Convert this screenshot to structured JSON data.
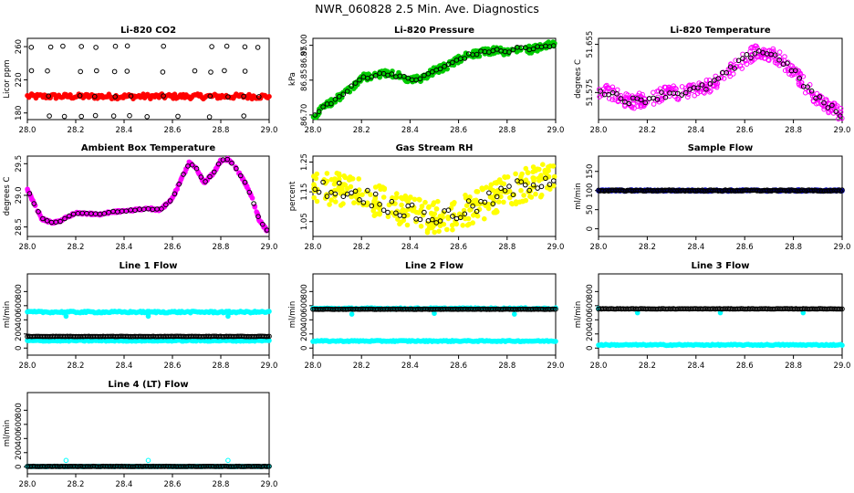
{
  "figure": {
    "title": "NWR_060828  2.5 Min. Ave. Diagnostics"
  },
  "colors": {
    "black": "#000000",
    "red": "#ff0000",
    "green": "#00cc00",
    "magenta": "#ff00ff",
    "yellow": "#ffff00",
    "blue": "#0000cc",
    "cyan": "#00ffff"
  },
  "chart_data": [
    {
      "type": "scatter",
      "title": "Li-820 CO2",
      "ylabel": "Licor ppm",
      "xlim": [
        28.0,
        29.0
      ],
      "ylim": [
        172,
        270
      ],
      "xticks": [
        28.0,
        28.2,
        28.4,
        28.6,
        28.8,
        29.0
      ],
      "xtick_labels": [
        "28.0",
        "28.2",
        "28.4",
        "28.6",
        "28.8",
        "29.0"
      ],
      "yticks": [
        180,
        220,
        260
      ],
      "ytick_labels": [
        "180",
        "220",
        "260"
      ],
      "series": [
        {
          "color": "red",
          "filled": true,
          "style": "band",
          "base": 200,
          "jitter": 3
        },
        {
          "color": "black",
          "filled": false,
          "style": "rows",
          "x_start": 28.02,
          "x_step": 0.067,
          "levels": [
            260,
            230,
            200,
            176
          ]
        }
      ]
    },
    {
      "type": "scatter",
      "title": "Li-820 Pressure",
      "ylabel": "kPa",
      "xlim": [
        28.0,
        29.0
      ],
      "ylim": [
        86.68,
        87.03
      ],
      "xticks": [
        28.0,
        28.2,
        28.4,
        28.6,
        28.8,
        29.0
      ],
      "xtick_labels": [
        "28.0",
        "28.2",
        "28.4",
        "28.6",
        "28.8",
        "29.0"
      ],
      "yticks": [
        86.7,
        86.85,
        87.0
      ],
      "ytick_labels": [
        "86.70",
        "86.85",
        "87.00"
      ],
      "y_extra_label": "86.95",
      "series": [
        {
          "color": "green",
          "filled": true,
          "style": "curve",
          "jitter": 0.015,
          "x": [
            28.0,
            28.05,
            28.1,
            28.15,
            28.2,
            28.25,
            28.3,
            28.35,
            28.4,
            28.45,
            28.5,
            28.55,
            28.6,
            28.65,
            28.7,
            28.75,
            28.8,
            28.85,
            28.9,
            28.95,
            29.0
          ],
          "y": [
            86.69,
            86.74,
            86.77,
            86.81,
            86.86,
            86.87,
            86.88,
            86.87,
            86.85,
            86.86,
            86.89,
            86.91,
            86.94,
            86.96,
            86.97,
            86.98,
            86.97,
            86.99,
            86.98,
            87.0,
            87.0
          ]
        },
        {
          "color": "black",
          "filled": false,
          "style": "follow",
          "count": 60
        }
      ]
    },
    {
      "type": "scatter",
      "title": "Li-820 Temperature",
      "ylabel": "degrees C",
      "xlim": [
        28.0,
        29.0
      ],
      "ylim": [
        51.53,
        51.665
      ],
      "xticks": [
        28.0,
        28.2,
        28.4,
        28.6,
        28.8,
        29.0
      ],
      "xtick_labels": [
        "28.0",
        "28.2",
        "28.4",
        "28.6",
        "28.8",
        "29.0"
      ],
      "yticks": [
        51.575,
        51.655
      ],
      "ytick_labels": [
        "51.575",
        "51.655"
      ],
      "series": [
        {
          "color": "magenta",
          "filled": false,
          "style": "curve",
          "jitter": 0.012,
          "x": [
            28.0,
            28.05,
            28.1,
            28.15,
            28.2,
            28.25,
            28.3,
            28.35,
            28.4,
            28.45,
            28.5,
            28.55,
            28.6,
            28.65,
            28.7,
            28.75,
            28.8,
            28.85,
            28.9,
            28.95,
            29.0
          ],
          "y": [
            51.58,
            51.575,
            51.565,
            51.56,
            51.565,
            51.57,
            51.575,
            51.575,
            51.58,
            51.585,
            51.6,
            51.615,
            51.63,
            51.645,
            51.64,
            51.63,
            51.61,
            51.585,
            51.565,
            51.55,
            51.54
          ]
        },
        {
          "color": "black",
          "filled": false,
          "style": "follow",
          "count": 60
        }
      ]
    },
    {
      "type": "scatter",
      "title": "Ambient Box Temperature",
      "ylabel": "degrees C",
      "xlim": [
        28.0,
        29.0
      ],
      "ylim": [
        28.35,
        29.62
      ],
      "xticks": [
        28.0,
        28.2,
        28.4,
        28.6,
        28.8,
        29.0
      ],
      "xtick_labels": [
        "28.0",
        "28.2",
        "28.4",
        "28.6",
        "28.8",
        "29.0"
      ],
      "yticks": [
        28.5,
        29.0,
        29.5
      ],
      "ytick_labels": [
        "28.5",
        "29.0",
        "29.5"
      ],
      "series": [
        {
          "color": "magenta",
          "filled": true,
          "style": "curve",
          "jitter": 0.015,
          "x": [
            28.0,
            28.03,
            28.06,
            28.1,
            28.13,
            28.16,
            28.2,
            28.25,
            28.3,
            28.35,
            28.4,
            28.45,
            28.5,
            28.55,
            28.6,
            28.63,
            28.67,
            28.7,
            28.73,
            28.77,
            28.8,
            28.83,
            28.86,
            28.9,
            28.93,
            28.96,
            29.0
          ],
          "y": [
            29.1,
            28.85,
            28.63,
            28.57,
            28.58,
            28.65,
            28.72,
            28.71,
            28.7,
            28.74,
            28.75,
            28.77,
            28.79,
            28.77,
            28.95,
            29.2,
            29.52,
            29.42,
            29.2,
            29.35,
            29.55,
            29.57,
            29.45,
            29.2,
            28.95,
            28.6,
            28.4
          ]
        },
        {
          "color": "black",
          "filled": false,
          "style": "follow",
          "count": 55
        }
      ]
    },
    {
      "type": "scatter",
      "title": "Gas Stream RH",
      "ylabel": "percent",
      "xlim": [
        28.0,
        29.0
      ],
      "ylim": [
        1.0,
        1.27
      ],
      "xticks": [
        28.0,
        28.2,
        28.4,
        28.6,
        28.8,
        29.0
      ],
      "xtick_labels": [
        "28.0",
        "28.2",
        "28.4",
        "28.6",
        "28.8",
        "29.0"
      ],
      "yticks": [
        1.05,
        1.15,
        1.25
      ],
      "ytick_labels": [
        "1.05",
        "1.15",
        "1.25"
      ],
      "series": [
        {
          "color": "yellow",
          "filled": true,
          "style": "curve",
          "jitter": 0.055,
          "x": [
            28.0,
            28.1,
            28.2,
            28.3,
            28.4,
            28.5,
            28.6,
            28.7,
            28.8,
            28.9,
            29.0
          ],
          "y": [
            1.16,
            1.16,
            1.14,
            1.11,
            1.08,
            1.06,
            1.08,
            1.11,
            1.15,
            1.18,
            1.2
          ]
        },
        {
          "color": "black",
          "filled": false,
          "style": "follow",
          "count": 60
        }
      ]
    },
    {
      "type": "scatter",
      "title": "Sample Flow",
      "ylabel": "ml/min",
      "xlim": [
        28.0,
        29.0
      ],
      "ylim": [
        -20,
        190
      ],
      "xticks": [
        28.0,
        28.2,
        28.4,
        28.6,
        28.8,
        29.0
      ],
      "xtick_labels": [
        "28.0",
        "28.2",
        "28.4",
        "28.6",
        "28.8",
        "29.0"
      ],
      "yticks": [
        0,
        50,
        100,
        150
      ],
      "ytick_labels": [
        "0",
        "50",
        "100",
        "150"
      ],
      "series": [
        {
          "color": "blue",
          "filled": true,
          "style": "band",
          "base": 100,
          "jitter": 2
        },
        {
          "color": "black",
          "filled": false,
          "style": "band",
          "base": 100,
          "jitter": 1.5
        }
      ]
    },
    {
      "type": "scatter",
      "title": "Line 1 Flow",
      "ylabel": "ml/min",
      "xlim": [
        28.0,
        29.0
      ],
      "ylim": [
        -100,
        1050
      ],
      "xticks": [
        28.0,
        28.2,
        28.4,
        28.6,
        28.8,
        29.0
      ],
      "xtick_labels": [
        "28.0",
        "28.2",
        "28.4",
        "28.6",
        "28.8",
        "29.0"
      ],
      "yticks": [
        0,
        200,
        400,
        600,
        800
      ],
      "ytick_labels": [
        "0",
        "200",
        "400",
        "600",
        "800"
      ],
      "series": [
        {
          "color": "cyan",
          "filled": true,
          "style": "band",
          "base": 510,
          "jitter": 12,
          "spikes": [
            [
              28.16,
              450
            ],
            [
              28.5,
              450
            ],
            [
              28.83,
              450
            ]
          ]
        },
        {
          "color": "cyan",
          "filled": true,
          "style": "band",
          "base": 105,
          "jitter": 8
        },
        {
          "color": "black",
          "filled": false,
          "style": "band",
          "base": 165,
          "jitter": 3
        }
      ]
    },
    {
      "type": "scatter",
      "title": "Line 2 Flow",
      "ylabel": "ml/min",
      "xlim": [
        28.0,
        29.0
      ],
      "ylim": [
        -100,
        1050
      ],
      "xticks": [
        28.0,
        28.2,
        28.4,
        28.6,
        28.8,
        29.0
      ],
      "xtick_labels": [
        "28.0",
        "28.2",
        "28.4",
        "28.6",
        "28.8",
        "29.0"
      ],
      "yticks": [
        0,
        200,
        400,
        600,
        800
      ],
      "ytick_labels": [
        "0",
        "200",
        "400",
        "600",
        "800"
      ],
      "series": [
        {
          "color": "cyan",
          "filled": true,
          "style": "band",
          "base": 560,
          "jitter": 10,
          "spikes": [
            [
              28.16,
              480
            ],
            [
              28.5,
              490
            ],
            [
              28.83,
              480
            ]
          ]
        },
        {
          "color": "cyan",
          "filled": true,
          "style": "band",
          "base": 100,
          "jitter": 8
        },
        {
          "color": "black",
          "filled": false,
          "style": "band",
          "base": 550,
          "jitter": 3
        }
      ]
    },
    {
      "type": "scatter",
      "title": "Line 3 Flow",
      "ylabel": "ml/min",
      "xlim": [
        28.0,
        29.0
      ],
      "ylim": [
        -100,
        1050
      ],
      "xticks": [
        28.0,
        28.2,
        28.4,
        28.6,
        28.8,
        29.0
      ],
      "xtick_labels": [
        "28.0",
        "28.2",
        "28.4",
        "28.6",
        "28.8",
        "29.0"
      ],
      "yticks": [
        0,
        200,
        400,
        600,
        800
      ],
      "ytick_labels": [
        "0",
        "200",
        "400",
        "600",
        "800"
      ],
      "series": [
        {
          "color": "cyan",
          "filled": true,
          "style": "band",
          "base": 45,
          "jitter": 8
        },
        {
          "color": "cyan",
          "filled": true,
          "style": "points",
          "x": [
            28.0,
            28.16,
            28.5,
            28.84
          ],
          "y": [
            560,
            500,
            500,
            500
          ]
        },
        {
          "color": "black",
          "filled": false,
          "style": "band",
          "base": 555,
          "jitter": 3
        }
      ]
    },
    {
      "type": "scatter",
      "title": "Line 4 (LT) Flow",
      "ylabel": "ml/min",
      "xlim": [
        28.0,
        29.0
      ],
      "ylim": [
        -100,
        1050
      ],
      "xticks": [
        28.0,
        28.2,
        28.4,
        28.6,
        28.8,
        29.0
      ],
      "xtick_labels": [
        "28.0",
        "28.2",
        "28.4",
        "28.6",
        "28.8",
        "29.0"
      ],
      "yticks": [
        0,
        200,
        400,
        600,
        800
      ],
      "ytick_labels": [
        "0",
        "200",
        "400",
        "600",
        "800"
      ],
      "series": [
        {
          "color": "cyan",
          "filled": true,
          "style": "band",
          "base": 5,
          "jitter": 3
        },
        {
          "color": "cyan",
          "filled": false,
          "style": "points",
          "x": [
            28.16,
            28.5,
            28.83
          ],
          "y": [
            90,
            90,
            90
          ]
        },
        {
          "color": "black",
          "filled": false,
          "style": "band",
          "base": 5,
          "jitter": 2
        }
      ]
    }
  ]
}
